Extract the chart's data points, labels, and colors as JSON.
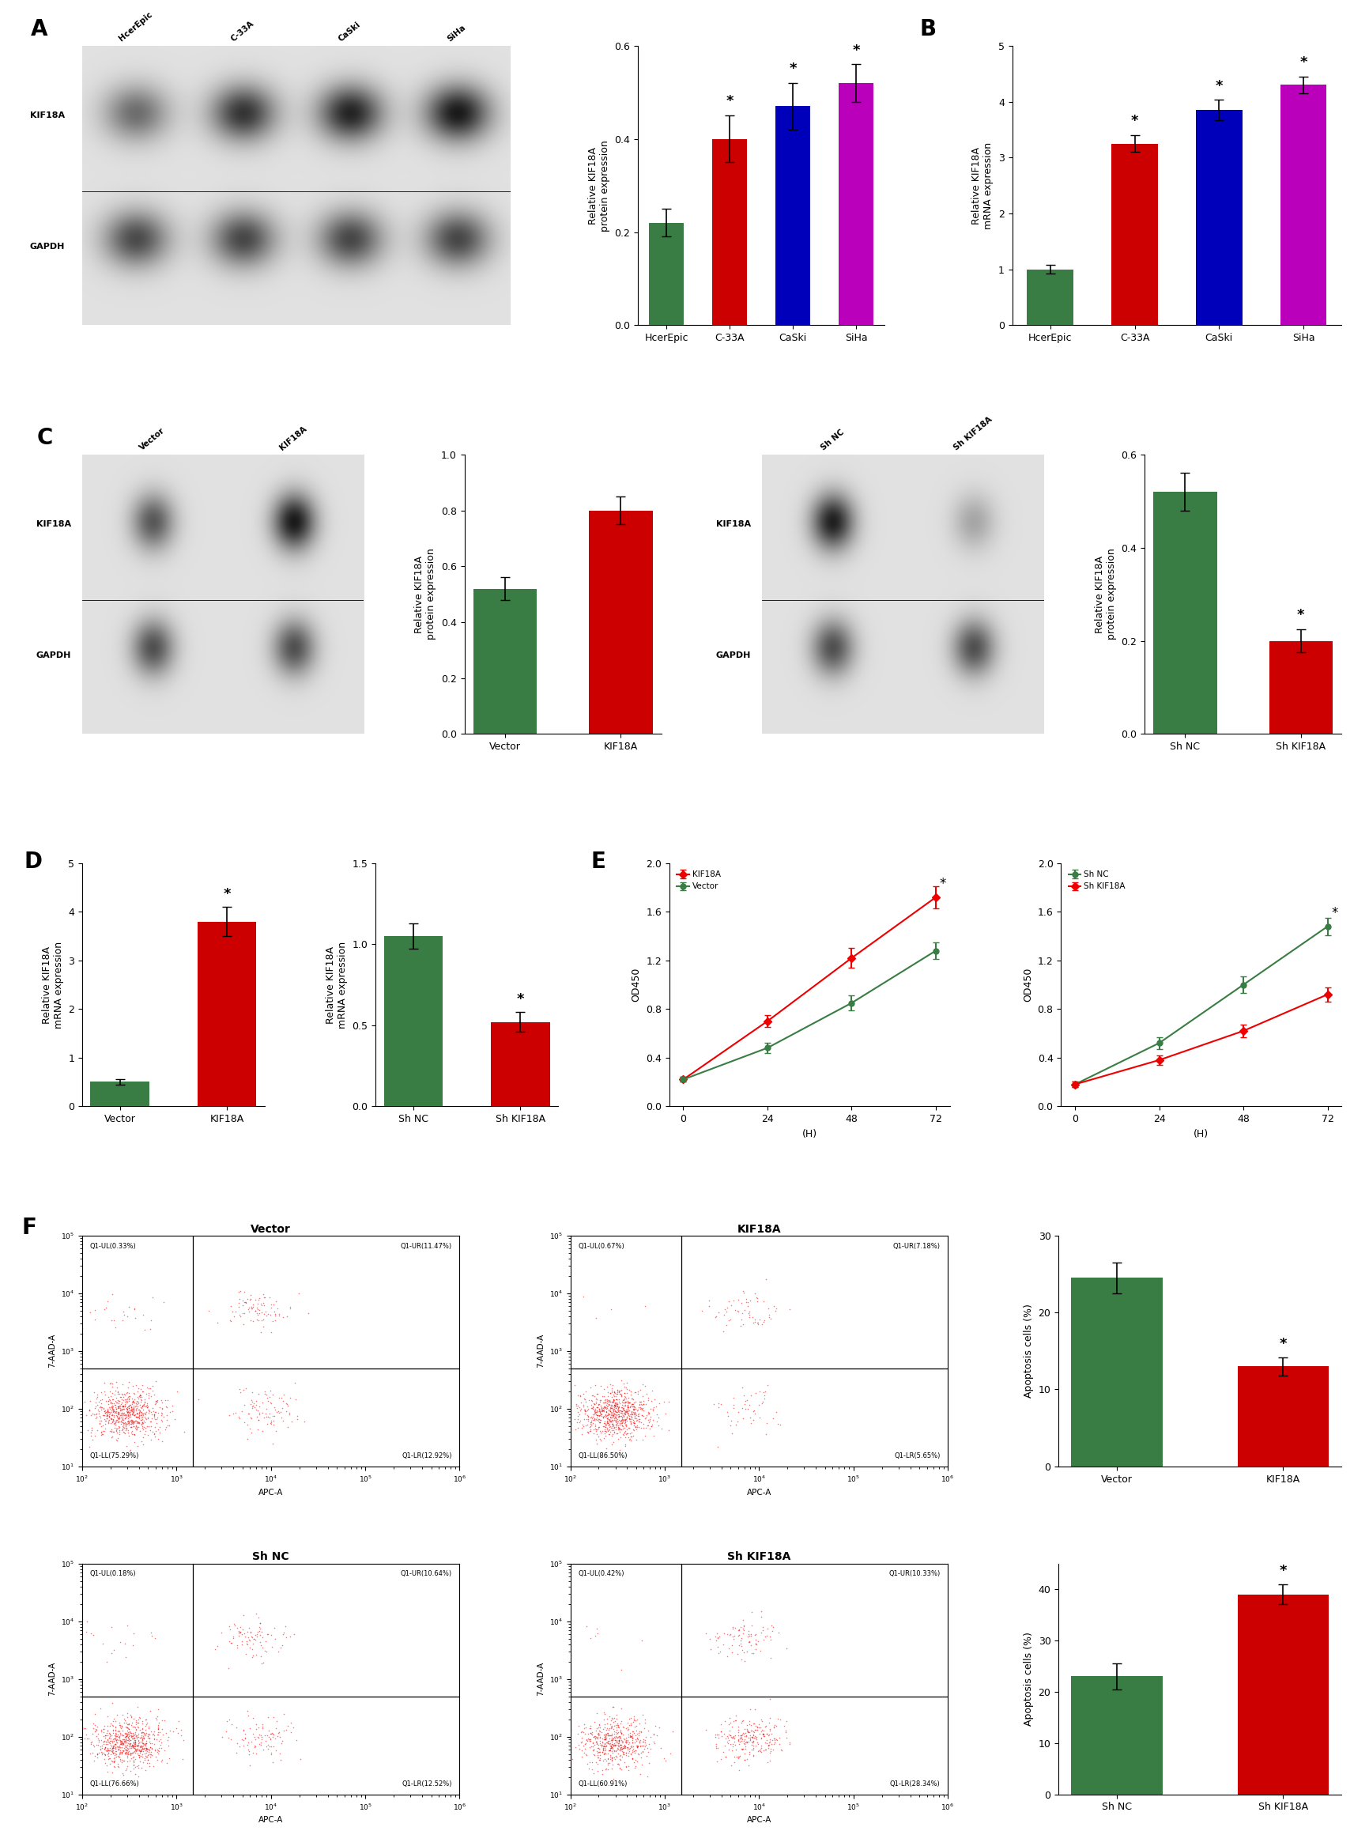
{
  "panel_A_bar": {
    "categories": [
      "HcerEpic",
      "C-33A",
      "CaSki",
      "SiHa"
    ],
    "values": [
      0.22,
      0.4,
      0.47,
      0.52
    ],
    "errors": [
      0.03,
      0.05,
      0.05,
      0.04
    ],
    "colors": [
      "#3a7d44",
      "#cc0000",
      "#0000bb",
      "#bb00bb"
    ],
    "ylabel": "Relative KIF18A\nprotein expression",
    "ylim": [
      0,
      0.6
    ],
    "yticks": [
      0.0,
      0.2,
      0.4,
      0.6
    ],
    "sig": [
      false,
      true,
      true,
      true
    ]
  },
  "panel_B_bar": {
    "categories": [
      "HcerEpic",
      "C-33A",
      "CaSki",
      "SiHa"
    ],
    "values": [
      1.0,
      3.25,
      3.85,
      4.3
    ],
    "errors": [
      0.08,
      0.15,
      0.18,
      0.15
    ],
    "colors": [
      "#3a7d44",
      "#cc0000",
      "#0000bb",
      "#bb00bb"
    ],
    "ylabel": "Relative KIF18A\nmRNA expression",
    "ylim": [
      0,
      5
    ],
    "yticks": [
      0,
      1,
      2,
      3,
      4,
      5
    ],
    "sig": [
      false,
      true,
      true,
      true
    ]
  },
  "panel_C_left_bar": {
    "categories": [
      "Vector",
      "KIF18A"
    ],
    "values": [
      0.52,
      0.8
    ],
    "errors": [
      0.04,
      0.05
    ],
    "colors": [
      "#3a7d44",
      "#cc0000"
    ],
    "ylabel": "Relative KIF18A\nprotein expression",
    "ylim": [
      0,
      1.0
    ],
    "yticks": [
      0.0,
      0.2,
      0.4,
      0.6,
      0.8,
      1.0
    ],
    "sig": [
      false,
      false
    ]
  },
  "panel_C_right_bar": {
    "categories": [
      "Sh NC",
      "Sh KIF18A"
    ],
    "values": [
      0.52,
      0.2
    ],
    "errors": [
      0.04,
      0.025
    ],
    "colors": [
      "#3a7d44",
      "#cc0000"
    ],
    "ylabel": "Relative KIF18A\nprotein expression",
    "ylim": [
      0,
      0.6
    ],
    "yticks": [
      0.0,
      0.2,
      0.4,
      0.6
    ],
    "sig": [
      false,
      true
    ]
  },
  "panel_D_left_bar": {
    "categories": [
      "Vector",
      "KIF18A"
    ],
    "values": [
      0.5,
      3.8
    ],
    "errors": [
      0.05,
      0.3
    ],
    "colors": [
      "#3a7d44",
      "#cc0000"
    ],
    "ylabel": "Relative KIF18A\nmRNA expression",
    "ylim": [
      0,
      5
    ],
    "yticks": [
      0,
      1,
      2,
      3,
      4,
      5
    ],
    "sig": [
      false,
      true
    ]
  },
  "panel_D_right_bar": {
    "categories": [
      "Sh NC",
      "Sh KIF18A"
    ],
    "values": [
      1.05,
      0.52
    ],
    "errors": [
      0.08,
      0.06
    ],
    "colors": [
      "#3a7d44",
      "#cc0000"
    ],
    "ylabel": "Relative KIF18A\nmRNA expression",
    "ylim": [
      0,
      1.5
    ],
    "yticks": [
      0.0,
      0.5,
      1.0,
      1.5
    ],
    "sig": [
      false,
      true
    ]
  },
  "panel_E_left": {
    "timepoints": [
      0,
      24,
      48,
      72
    ],
    "KIF18A": [
      0.22,
      0.7,
      1.22,
      1.72
    ],
    "Vector": [
      0.22,
      0.48,
      0.85,
      1.28
    ],
    "KIF18A_err": [
      0.02,
      0.05,
      0.08,
      0.09
    ],
    "Vector_err": [
      0.02,
      0.04,
      0.06,
      0.07
    ],
    "xlabel": "(H)",
    "ylabel": "OD450",
    "ylim": [
      0.0,
      2.0
    ],
    "yticks": [
      0.0,
      0.4,
      0.8,
      1.2,
      1.6,
      2.0
    ],
    "xticks": [
      0,
      24,
      48,
      72
    ]
  },
  "panel_E_right": {
    "timepoints": [
      0,
      24,
      48,
      72
    ],
    "ShKIF18A": [
      0.18,
      0.38,
      0.62,
      0.92
    ],
    "ShNC": [
      0.18,
      0.52,
      1.0,
      1.48
    ],
    "ShKIF18A_err": [
      0.02,
      0.04,
      0.05,
      0.06
    ],
    "ShNC_err": [
      0.02,
      0.05,
      0.07,
      0.07
    ],
    "xlabel": "(H)",
    "ylabel": "OD450",
    "ylim": [
      0.0,
      2.0
    ],
    "yticks": [
      0.0,
      0.4,
      0.8,
      1.2,
      1.6,
      2.0
    ],
    "xticks": [
      0,
      24,
      48,
      72
    ]
  },
  "panel_F_top_bar": {
    "categories": [
      "Vector",
      "KIF18A"
    ],
    "values": [
      24.5,
      13.0
    ],
    "errors": [
      2.0,
      1.2
    ],
    "colors": [
      "#3a7d44",
      "#cc0000"
    ],
    "ylabel": "Apoptosis cells (%)",
    "ylim": [
      0,
      30
    ],
    "yticks": [
      0,
      10,
      20,
      30
    ],
    "sig": [
      false,
      true
    ]
  },
  "panel_F_bottom_bar": {
    "categories": [
      "Sh NC",
      "Sh KIF18A"
    ],
    "values": [
      23.0,
      39.0
    ],
    "errors": [
      2.5,
      2.0
    ],
    "colors": [
      "#3a7d44",
      "#cc0000"
    ],
    "ylabel": "Apoptosis cells (%)",
    "ylim": [
      0,
      45
    ],
    "yticks": [
      0,
      10,
      20,
      30,
      40
    ],
    "sig": [
      false,
      true
    ]
  },
  "colors": {
    "green": "#3a7d44",
    "red": "#cc0000",
    "blue": "#0000bb",
    "magenta": "#bb00bb",
    "KIF18A_line": "#ee0000",
    "Vector_line": "#3a7d44",
    "ShKIF18A_line": "#ee0000",
    "ShNC_line": "#3a7d44"
  },
  "background": "#ffffff",
  "tick_fontsize": 9,
  "axis_label_fontsize": 9,
  "panel_label_fontsize": 20,
  "star_fontsize": 13
}
